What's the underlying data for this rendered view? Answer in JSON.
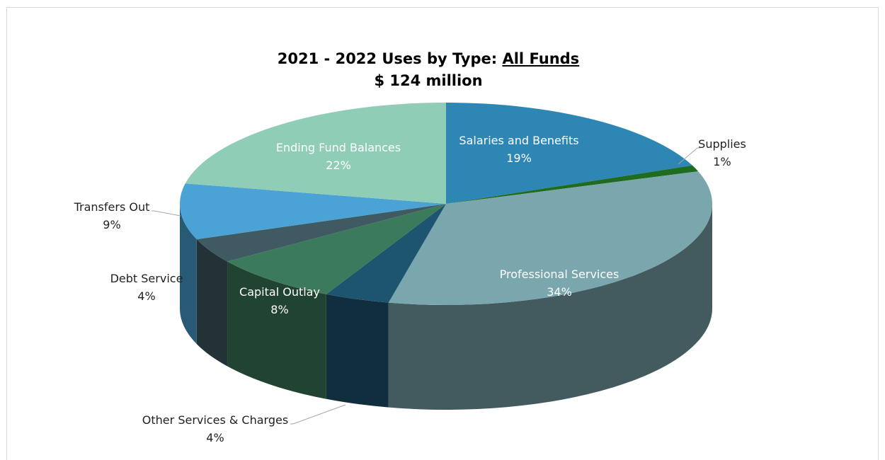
{
  "chart_data": {
    "type": "pie",
    "title_main": "2021 - 2022 Uses by Type: ",
    "title_underlined": "All Funds",
    "subtitle": "$ 124 million",
    "slices": [
      {
        "label": "Salaries and Benefits",
        "pct_label": "19%",
        "value": 19,
        "color": "#2e86b5"
      },
      {
        "label": "Supplies",
        "pct_label": "1%",
        "value": 1,
        "color": "#1f6b1f"
      },
      {
        "label": "Professional Services",
        "pct_label": "34%",
        "value": 34,
        "color": "#7aa6ad"
      },
      {
        "label": "Other Services & Charges",
        "pct_label": "4%",
        "value": 4,
        "color": "#1d5470"
      },
      {
        "label": "Capital Outlay",
        "pct_label": "8%",
        "value": 8,
        "color": "#3b7a5a"
      },
      {
        "label": "Debt Service",
        "pct_label": "4%",
        "value": 4,
        "color": "#3f5a63"
      },
      {
        "label": "Transfers Out",
        "pct_label": "9%",
        "value": 9,
        "color": "#4aa3d4"
      },
      {
        "label": "Ending Fund Balances",
        "pct_label": "22%",
        "value": 22,
        "color": "#8fcdb7"
      }
    ]
  }
}
